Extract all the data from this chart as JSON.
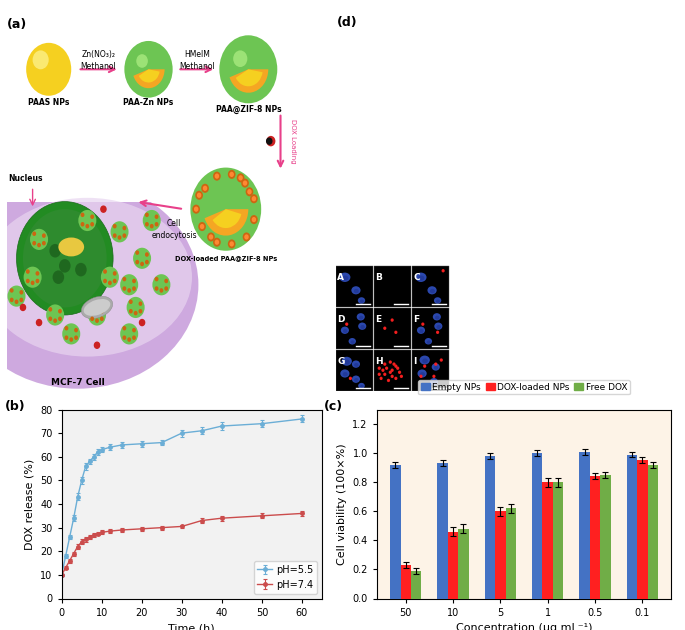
{
  "panel_b": {
    "xlabel": "Time (h)",
    "ylabel": "DOX release (%)",
    "ylim": [
      0,
      80
    ],
    "yticks": [
      0,
      10,
      20,
      30,
      40,
      50,
      60,
      70,
      80
    ],
    "xlim": [
      0,
      65
    ],
    "xticks": [
      0,
      10,
      20,
      30,
      40,
      50,
      60
    ],
    "ph55_color": "#6BAED6",
    "ph74_color": "#CB4C4C",
    "ph55_label": "pH=5.5",
    "ph74_label": "pH=7.4",
    "ph55_x": [
      0,
      1,
      2,
      3,
      4,
      5,
      6,
      7,
      8,
      9,
      10,
      12,
      15,
      20,
      25,
      30,
      35,
      40,
      50,
      60
    ],
    "ph55_y": [
      10,
      18,
      26,
      34,
      43,
      50,
      56,
      58,
      60,
      62,
      63,
      64,
      65,
      65.5,
      66,
      70,
      71,
      73,
      74,
      76
    ],
    "ph55_err": [
      0.5,
      0.8,
      1.0,
      1.2,
      1.5,
      1.5,
      1.5,
      1.2,
      1.2,
      1.2,
      1.2,
      1.2,
      1.2,
      1.2,
      1.2,
      1.5,
      1.5,
      1.5,
      1.5,
      1.5
    ],
    "ph74_x": [
      0,
      1,
      2,
      3,
      4,
      5,
      6,
      7,
      8,
      9,
      10,
      12,
      15,
      20,
      25,
      30,
      35,
      40,
      50,
      60
    ],
    "ph74_y": [
      10,
      13,
      16,
      19,
      22,
      24,
      25,
      26,
      27,
      27.5,
      28,
      28.5,
      29,
      29.5,
      30,
      30.5,
      33,
      34,
      35,
      36
    ],
    "ph74_err": [
      0.5,
      0.6,
      0.8,
      0.8,
      1.0,
      1.0,
      1.0,
      1.0,
      0.8,
      0.8,
      0.8,
      0.8,
      0.8,
      0.8,
      0.8,
      0.8,
      1.0,
      1.0,
      1.0,
      1.0
    ],
    "bg_color": "#F2F2F2"
  },
  "panel_c": {
    "xlabel": "Concentration (μg mL⁻¹)",
    "ylabel": "Cell viability (100×%)",
    "ylim": [
      0,
      1.3
    ],
    "yticks": [
      0.0,
      0.2,
      0.4,
      0.6,
      0.8,
      1.0,
      1.2
    ],
    "categories": [
      "50",
      "10",
      "5",
      "1",
      "0.5",
      "0.1"
    ],
    "empty_nps": [
      0.92,
      0.93,
      0.98,
      1.0,
      1.01,
      0.99
    ],
    "empty_nps_err": [
      0.02,
      0.02,
      0.02,
      0.02,
      0.02,
      0.02
    ],
    "dox_loaded": [
      0.23,
      0.46,
      0.6,
      0.8,
      0.84,
      0.95
    ],
    "dox_loaded_err": [
      0.02,
      0.03,
      0.03,
      0.03,
      0.02,
      0.02
    ],
    "free_dox": [
      0.19,
      0.48,
      0.62,
      0.8,
      0.85,
      0.92
    ],
    "free_dox_err": [
      0.02,
      0.03,
      0.03,
      0.03,
      0.02,
      0.02
    ],
    "color_empty": "#4472C4",
    "color_dox_loaded": "#FF2020",
    "color_free_dox": "#70AD47",
    "label_empty": "Empty NPs",
    "label_dox_loaded": "DOX-loaded NPs",
    "label_free_dox": "Free DOX",
    "bg_color": "#FDF3E7"
  },
  "fluorescence": {
    "show_blue": [
      true,
      false,
      true,
      true,
      false,
      true,
      true,
      false,
      true
    ],
    "show_red": [
      false,
      false,
      true,
      false,
      false,
      true,
      false,
      true,
      true
    ],
    "labels": [
      "A",
      "B",
      "C",
      "D",
      "E",
      "F",
      "G",
      "H",
      "I"
    ]
  }
}
